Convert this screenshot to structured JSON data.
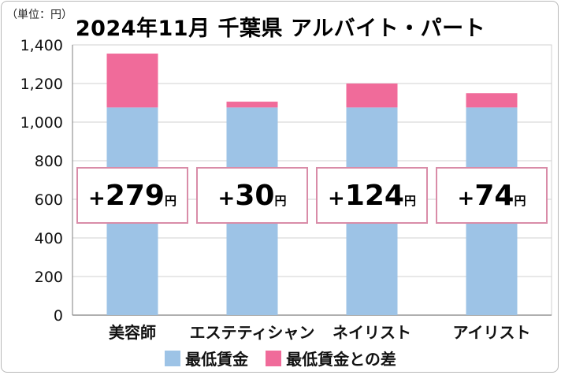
{
  "unit_label": "（単位：円）",
  "chart_data": {
    "type": "bar",
    "stacked": true,
    "title": "2024年11月 千葉県 アルバイト・パート",
    "categories": [
      "美容師",
      "エステティシャン",
      "ネイリスト",
      "アイリスト"
    ],
    "series": [
      {
        "name": "最低賃金",
        "values": [
          1076,
          1076,
          1076,
          1076
        ],
        "color": "#9dc3e6"
      },
      {
        "name": "最低賃金との差",
        "values": [
          279,
          30,
          124,
          74
        ],
        "color": "#f06b9a"
      }
    ],
    "callouts": [
      {
        "sign": "+",
        "number": "279",
        "suffix": "円"
      },
      {
        "sign": "+",
        "number": "30",
        "suffix": "円"
      },
      {
        "sign": "+",
        "number": "124",
        "suffix": "円"
      },
      {
        "sign": "+",
        "number": "74",
        "suffix": "円"
      }
    ],
    "ylim": [
      0,
      1400
    ],
    "yticks": [
      0,
      200,
      400,
      600,
      800,
      1000,
      1200,
      1400
    ],
    "ytick_labels": [
      "0",
      "200",
      "400",
      "600",
      "800",
      "1,000",
      "1,200",
      "1,400"
    ],
    "grid": true,
    "legend_position": "bottom",
    "colors": {
      "grid": "#d0d0d0",
      "axis": "#7f7f7f",
      "callout_border": "#d98ca8"
    }
  }
}
